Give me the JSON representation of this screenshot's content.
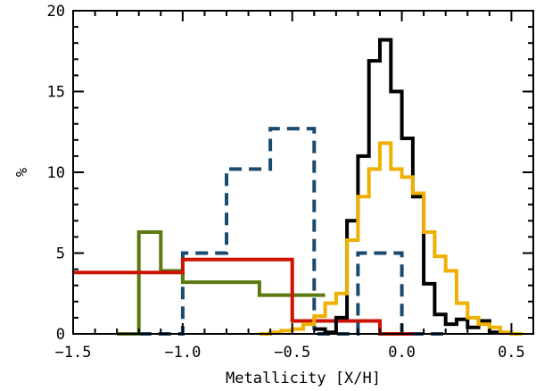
{
  "chart_data": {
    "type": "histogram-step",
    "title": "",
    "xlabel": "Metallicity [X/H]",
    "ylabel": "%",
    "xlim": [
      -1.5,
      0.6
    ],
    "ylim": [
      0,
      20
    ],
    "xticks": [
      -1.5,
      -1.0,
      -0.5,
      0.0,
      0.5
    ],
    "xtick_labels": [
      "−1.5",
      "−1.0",
      "−0.5",
      "0.0",
      "0.5"
    ],
    "yticks": [
      0,
      5,
      10,
      15,
      20
    ],
    "ytick_labels": [
      "0",
      "5",
      "10",
      "15",
      "20"
    ],
    "grid": false,
    "legend": "none",
    "series": [
      {
        "color": "#1a4a6e",
        "style": "dashed",
        "edges": [
          -1.2,
          -1.0,
          -0.8,
          -0.6,
          -0.4,
          -0.2,
          0.0,
          0.2
        ],
        "values": [
          0,
          5.0,
          10.2,
          12.7,
          0,
          5.0,
          0
        ]
      },
      {
        "color": "#5a7a10",
        "style": "solid",
        "edges": [
          -1.3,
          -1.25,
          -1.2,
          -1.1,
          -1.0,
          -0.8,
          -0.65,
          -0.35
        ],
        "values": [
          0,
          0,
          6.3,
          3.9,
          3.2,
          3.2,
          2.4
        ]
      },
      {
        "color": "#cc1100",
        "style": "solid",
        "edges": [
          -1.5,
          -1.0,
          -0.5,
          -0.1,
          0.05
        ],
        "values": [
          3.8,
          4.6,
          0.8,
          0
        ]
      },
      {
        "color": "#000000",
        "style": "solid",
        "edges": [
          -0.4,
          -0.35,
          -0.3,
          -0.25,
          -0.2,
          -0.15,
          -0.1,
          -0.05,
          0.0,
          0.05,
          0.1,
          0.15,
          0.2,
          0.25,
          0.3,
          0.35,
          0.4,
          0.45
        ],
        "values": [
          0.3,
          0.1,
          1.0,
          7.0,
          11.0,
          16.9,
          18.2,
          15.0,
          12.1,
          8.5,
          3.1,
          1.2,
          0.6,
          0.9,
          0.4,
          0.8,
          0.1
        ]
      },
      {
        "color": "#f0b000",
        "style": "solid",
        "edges": [
          -0.65,
          -0.6,
          -0.55,
          -0.5,
          -0.45,
          -0.4,
          -0.35,
          -0.3,
          -0.25,
          -0.2,
          -0.15,
          -0.1,
          -0.05,
          0.0,
          0.05,
          0.1,
          0.15,
          0.2,
          0.25,
          0.3,
          0.35,
          0.4,
          0.45,
          0.5,
          0.55
        ],
        "values": [
          0.0,
          0.1,
          0.2,
          0.3,
          0.6,
          1.1,
          1.9,
          2.5,
          5.8,
          8.5,
          10.2,
          11.8,
          10.2,
          9.7,
          8.7,
          6.3,
          4.8,
          3.9,
          1.9,
          1.0,
          0.6,
          0.4,
          0.1,
          0.0
        ]
      }
    ]
  }
}
